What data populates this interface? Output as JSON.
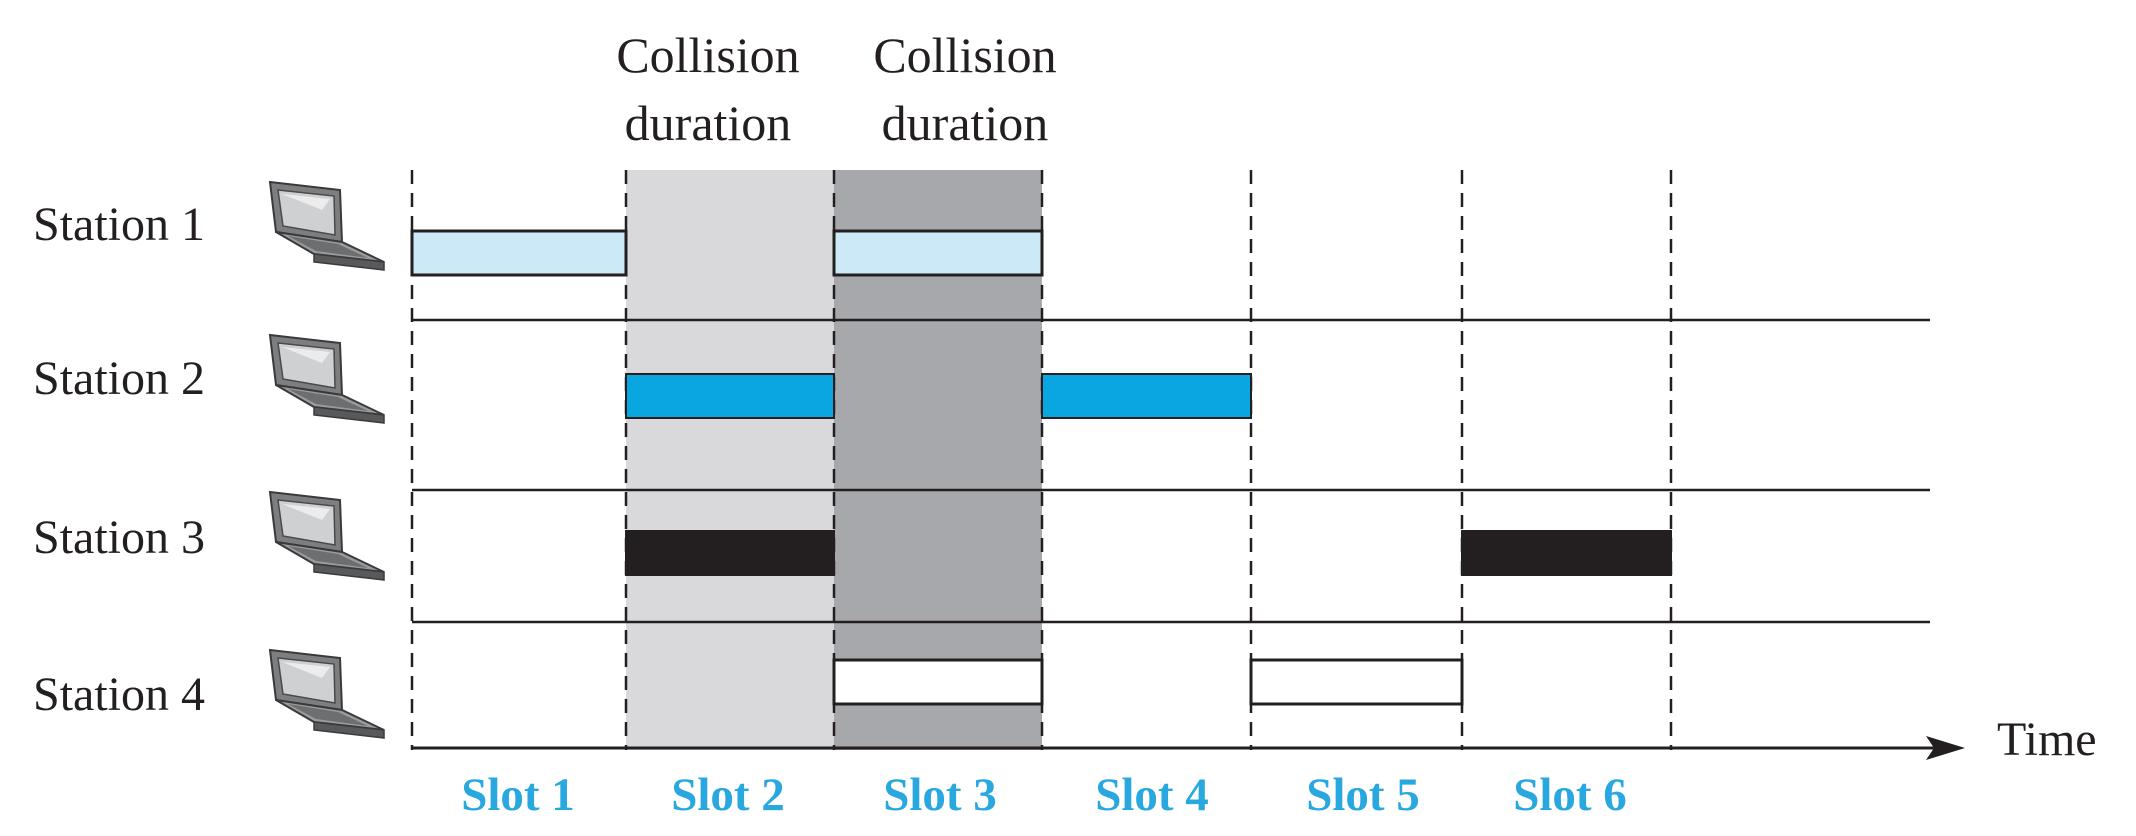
{
  "collision_label": {
    "line1": "Collision",
    "line2": "duration"
  },
  "stations": [
    {
      "label": "Station 1",
      "icon": "laptop-icon"
    },
    {
      "label": "Station 2",
      "icon": "laptop-icon"
    },
    {
      "label": "Station 3",
      "icon": "laptop-icon"
    },
    {
      "label": "Station 4",
      "icon": "laptop-icon"
    }
  ],
  "slots": [
    "Slot 1",
    "Slot 2",
    "Slot 3",
    "Slot 4",
    "Slot 5",
    "Slot 6"
  ],
  "time_label": "Time",
  "frames": [
    {
      "station": 1,
      "start_slot": 1,
      "style": "light"
    },
    {
      "station": 1,
      "start_slot": 3,
      "style": "light"
    },
    {
      "station": 2,
      "start_slot": 2,
      "style": "medium"
    },
    {
      "station": 2,
      "start_slot": 4,
      "style": "medium"
    },
    {
      "station": 3,
      "start_slot": 2,
      "style": "black"
    },
    {
      "station": 3,
      "start_slot": 6,
      "style": "black"
    },
    {
      "station": 4,
      "start_slot": 3,
      "style": "white"
    },
    {
      "station": 4,
      "start_slot": 5,
      "style": "white"
    }
  ],
  "collision_slots": [
    2,
    3
  ],
  "colors": {
    "light_frame": "#cce9f8",
    "medium_frame": "#0aa6e1",
    "black_frame": "#231f20",
    "white_frame": "#ffffff",
    "collision_slot_2": "#d9d9db",
    "collision_slot_3": "#a7a8ab",
    "slot_label": "#29a8e0"
  }
}
